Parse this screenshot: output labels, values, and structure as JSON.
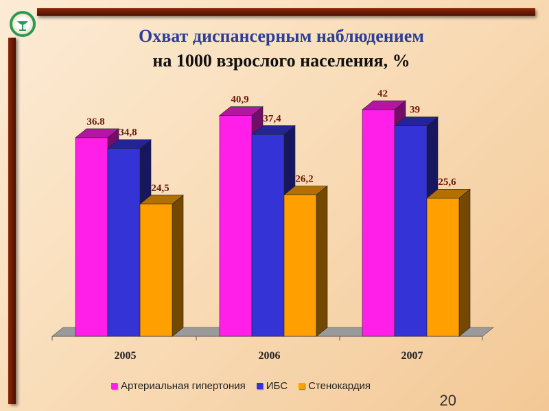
{
  "slide": {
    "title_line1": "Охват диспансерным наблюдением",
    "title_line2": "на 1000 взрослого населения, %",
    "page_number": "20"
  },
  "colors": {
    "frame": "#6a1a04",
    "title": "#2b3f9a",
    "logo": "#2a9a5a"
  },
  "logo": {
    "icon": "medical-bowl-snake-icon"
  },
  "chart_data": {
    "type": "bar",
    "style": "3d-clustered-column",
    "categories": [
      "2005",
      "2006",
      "2007"
    ],
    "series": [
      {
        "name": "Артериальная гипертония",
        "values": [
          36.8,
          40.9,
          42
        ],
        "labels": [
          "36.8",
          "40,9",
          "42"
        ],
        "color": "#ff1fe8"
      },
      {
        "name": "ИБС",
        "values": [
          34.8,
          37.4,
          39
        ],
        "labels": [
          "34,8",
          "37,4",
          "39"
        ],
        "color": "#3434d6"
      },
      {
        "name": "Стенокардия",
        "values": [
          24.5,
          26.2,
          25.6
        ],
        "labels": [
          "24,5",
          "26,2",
          "25,6"
        ],
        "color": "#ff9f00"
      }
    ],
    "ylim": [
      0,
      42
    ],
    "grid": false,
    "legend_position": "bottom"
  }
}
